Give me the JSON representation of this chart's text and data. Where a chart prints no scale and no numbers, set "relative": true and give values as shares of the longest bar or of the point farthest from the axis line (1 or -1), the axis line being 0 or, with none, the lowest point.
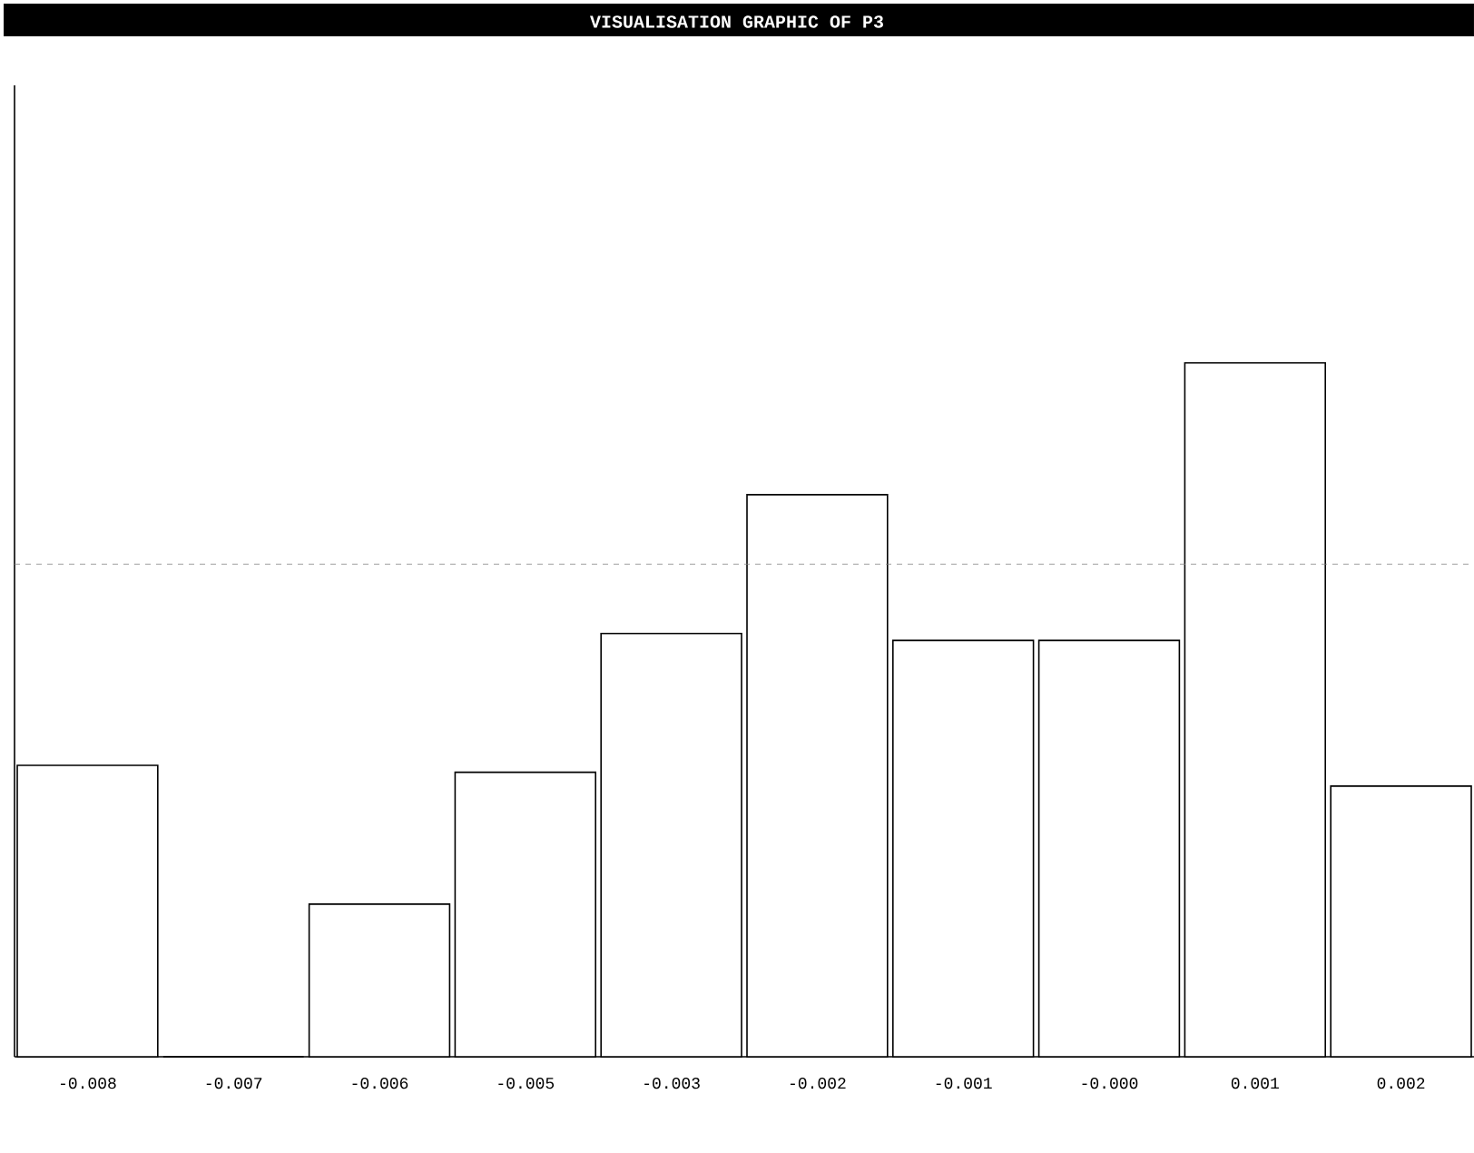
{
  "chart_data": {
    "type": "bar",
    "title": "VISUALISATION GRAPHIC OF P3",
    "categories": [
      "-0.008",
      "-0.007",
      "-0.006",
      "-0.005",
      "-0.003",
      "-0.002",
      "-0.001",
      "-0.000",
      "0.001",
      "0.002"
    ],
    "values": [
      0.42,
      0,
      0.22,
      0.41,
      0.61,
      0.81,
      0.6,
      0.6,
      1,
      0.39
    ],
    "color": "#ffffff",
    "relative": true,
    "ref_lines": [
      {
        "axis": "y",
        "value": 0.71,
        "line_style": "dashed"
      }
    ]
  }
}
